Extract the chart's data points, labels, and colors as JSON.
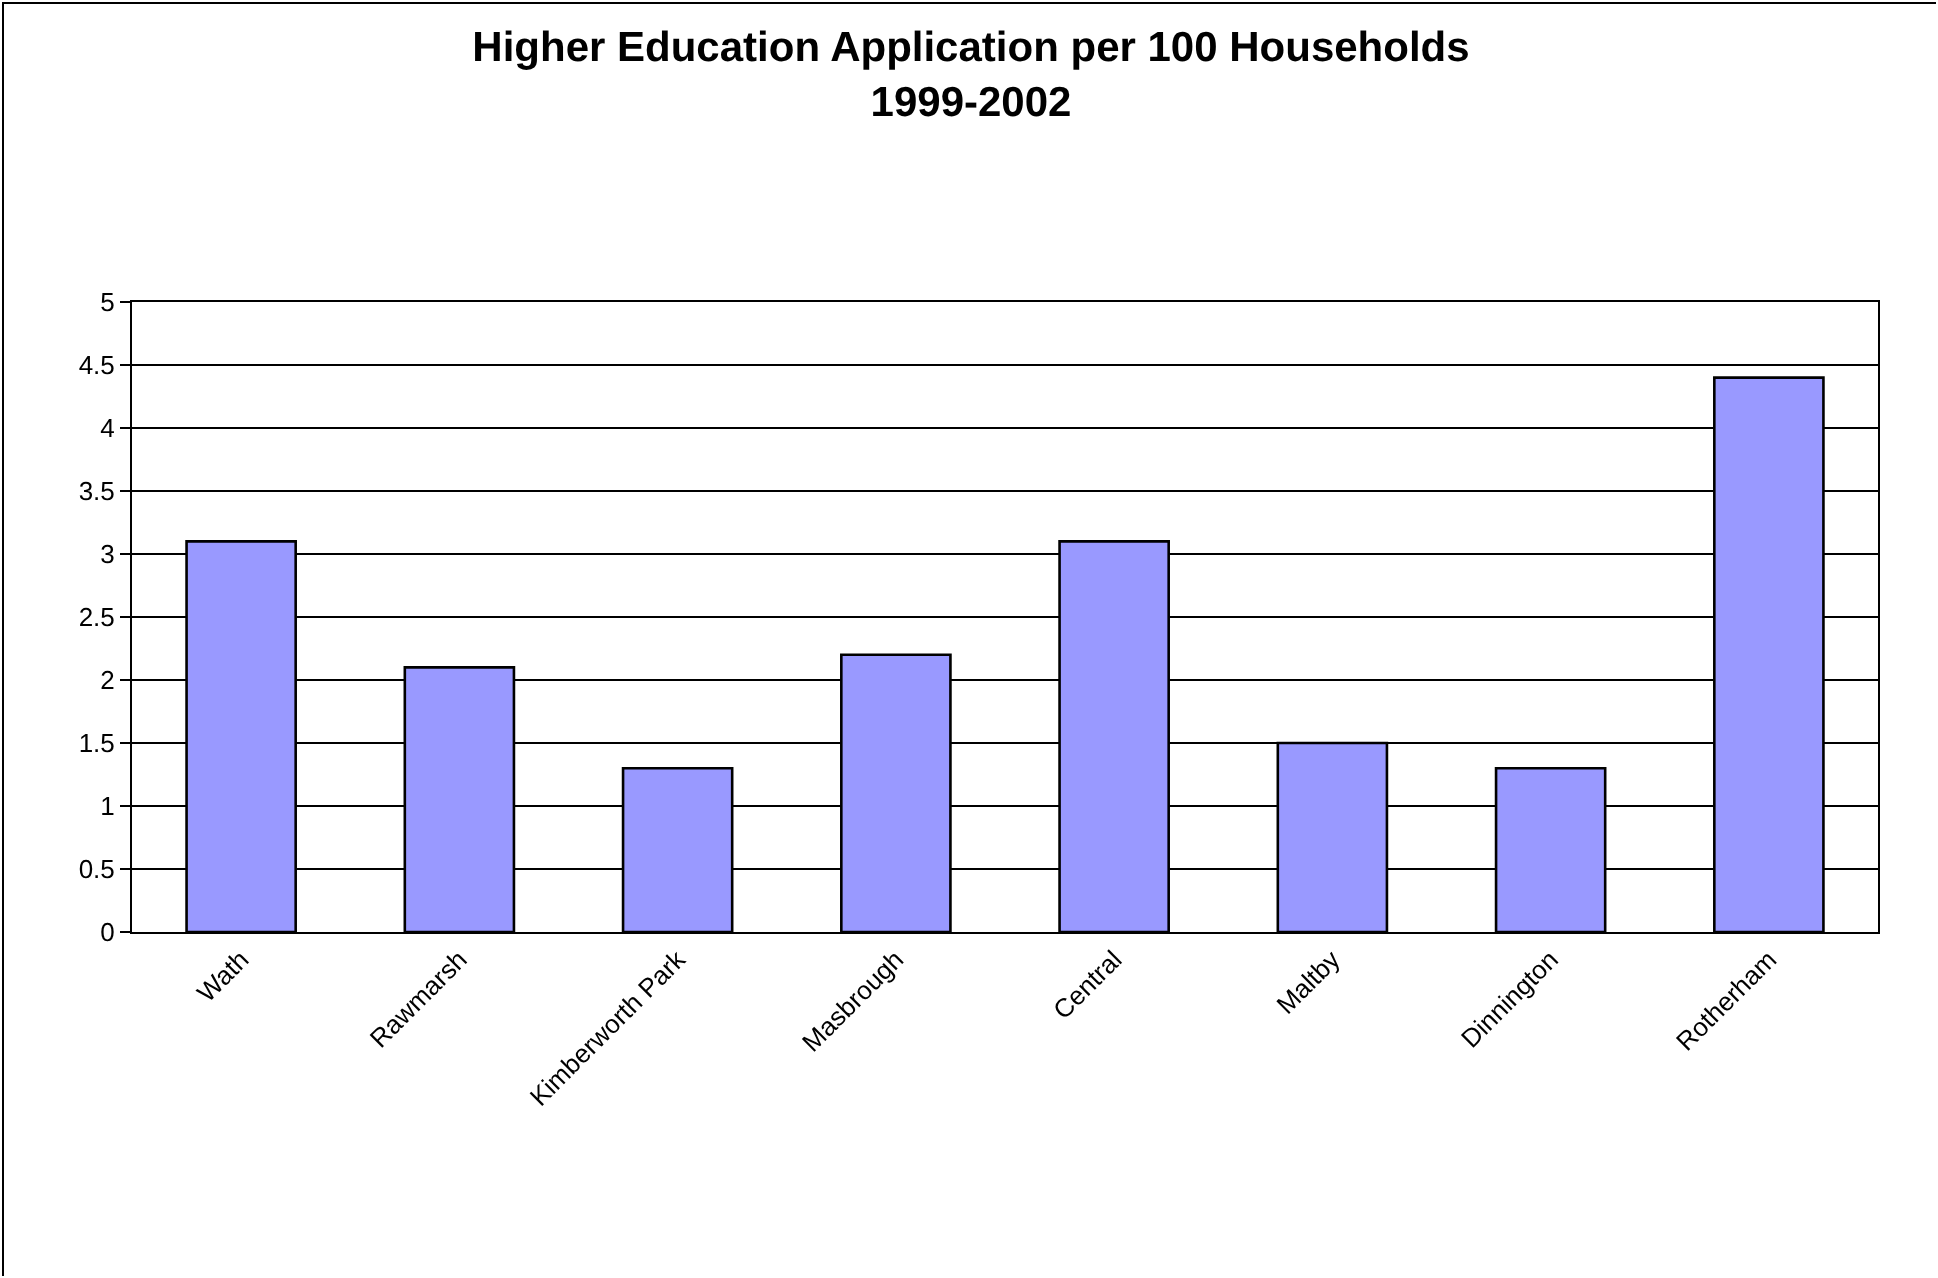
{
  "chart_data": {
    "type": "bar",
    "title": "Higher Education Application per 100 Households\n1999-2002",
    "categories": [
      "Wath",
      "Rawmarsh",
      "Kimberworth Park",
      "Masbrough",
      "Central",
      "Maltby",
      "Dinnington",
      "Rotherham"
    ],
    "values": [
      3.1,
      2.1,
      1.3,
      2.2,
      3.1,
      1.5,
      1.3,
      4.4
    ],
    "color": "#9999ff",
    "ylim": [
      0,
      5
    ],
    "yticks": [
      0,
      0.5,
      1,
      1.5,
      2,
      2.5,
      3,
      3.5,
      4,
      4.5,
      5
    ],
    "grid": "y"
  }
}
